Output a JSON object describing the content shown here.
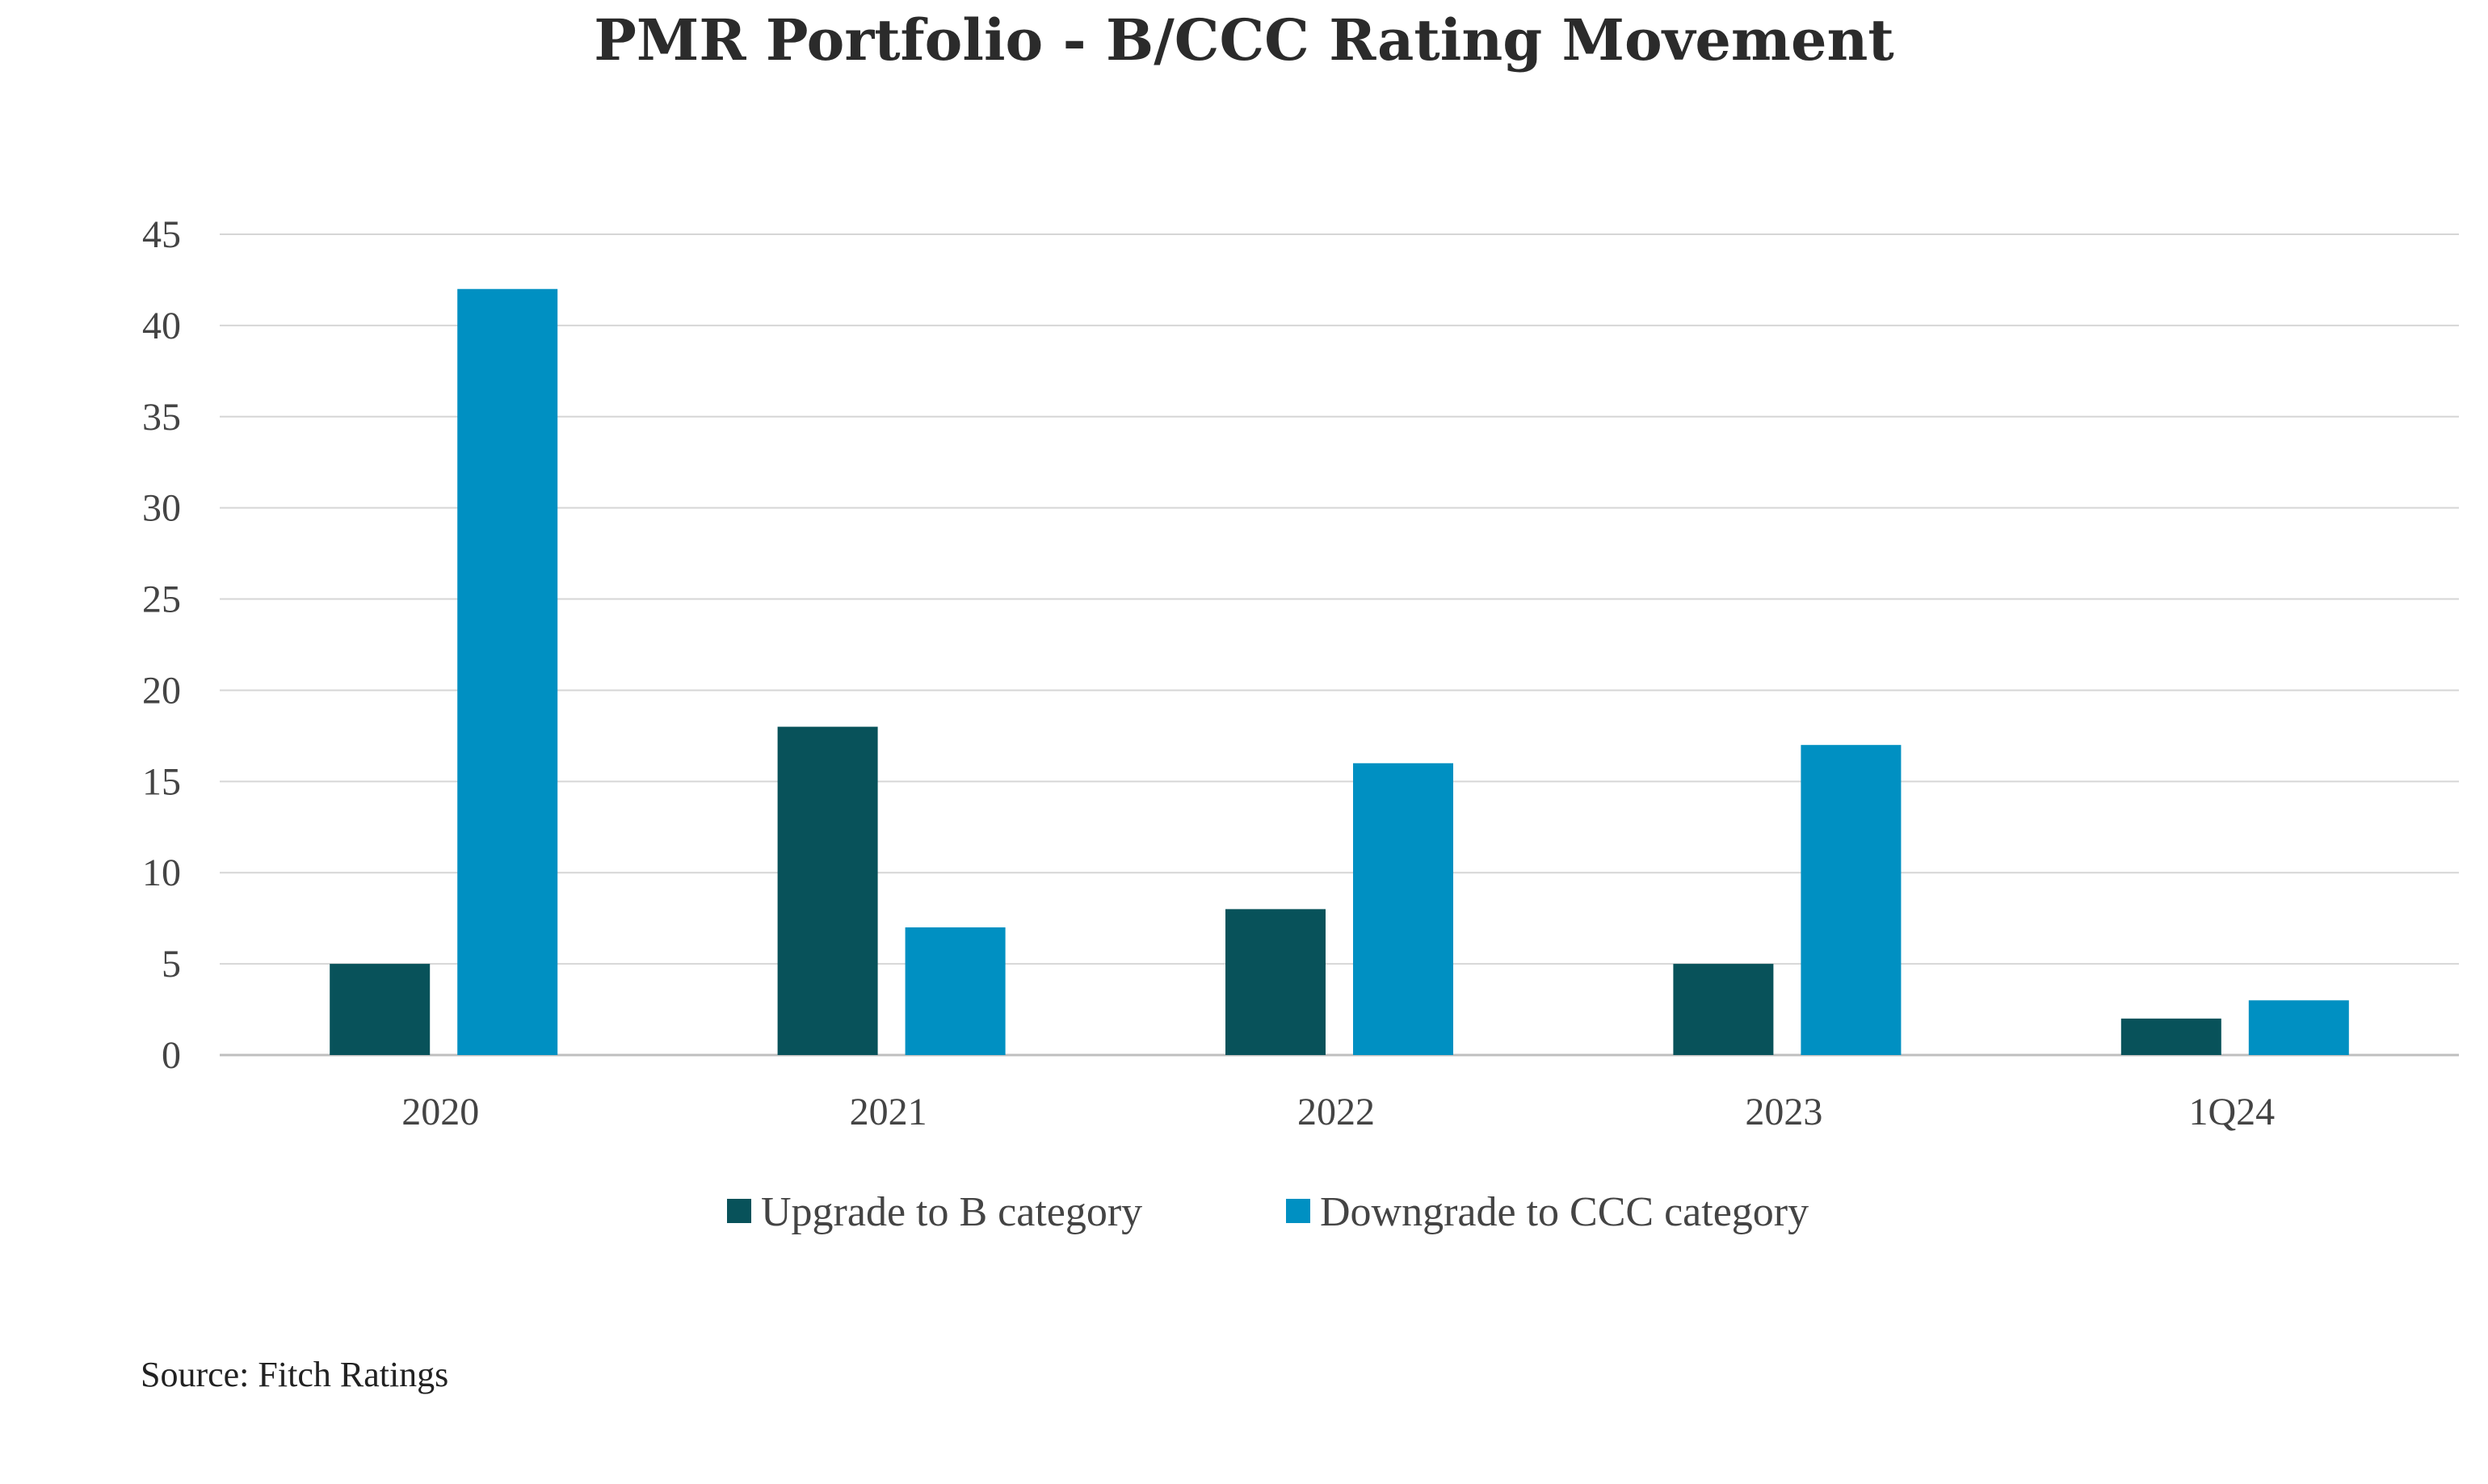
{
  "chart_data": {
    "type": "bar",
    "title": "PMR Portfolio - B/CCC Rating Movement",
    "categories": [
      "2020",
      "2021",
      "2022",
      "2023",
      "1Q24"
    ],
    "series": [
      {
        "name": "Upgrade to B category",
        "color": "#08525a",
        "values": [
          5,
          18,
          8,
          5,
          2
        ]
      },
      {
        "name": "Downgrade to CCC category",
        "color": "#0090c2",
        "values": [
          42,
          7,
          16,
          17,
          3
        ]
      }
    ],
    "ylim": [
      0,
      45
    ],
    "yticks": [
      "0",
      "5",
      "10",
      "15",
      "20",
      "25",
      "30",
      "35",
      "40",
      "45"
    ],
    "grid": true,
    "legend": "bottom-center",
    "xlabel": "",
    "ylabel": ""
  },
  "source": "Source: Fitch Ratings"
}
